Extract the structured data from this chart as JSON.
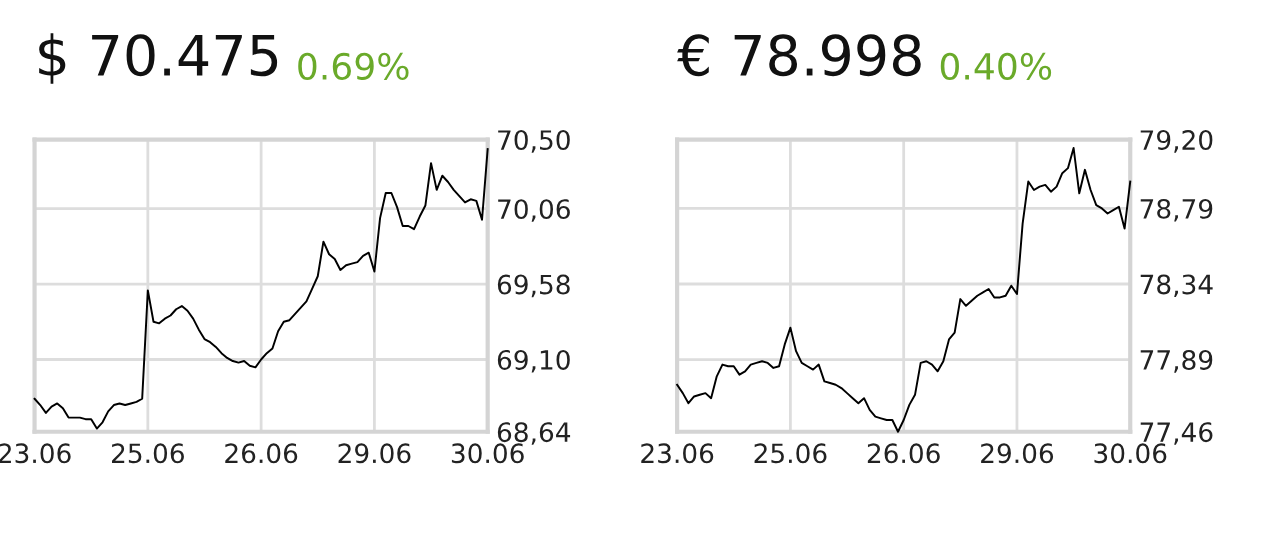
{
  "chart_data": [
    {
      "type": "line",
      "title": "$ 70.475",
      "subtitle": "0.69%",
      "categories": [
        "23.06",
        null,
        null,
        null,
        null,
        null,
        null,
        null,
        null,
        null,
        null,
        null,
        null,
        null,
        null,
        null,
        null,
        null,
        null,
        null,
        "25.06",
        null,
        null,
        null,
        null,
        null,
        null,
        null,
        null,
        null,
        null,
        null,
        null,
        null,
        null,
        null,
        null,
        null,
        null,
        null,
        "26.06",
        null,
        null,
        null,
        null,
        null,
        null,
        null,
        null,
        null,
        null,
        null,
        null,
        null,
        null,
        null,
        null,
        null,
        null,
        null,
        "29.06",
        null,
        null,
        null,
        null,
        null,
        null,
        null,
        null,
        null,
        null,
        null,
        null,
        null,
        null,
        null,
        null,
        null,
        null,
        null,
        "30.06"
      ],
      "ylim": [
        68.64,
        70.5
      ],
      "yticks": [
        {
          "value": 68.64,
          "label": "68,64"
        },
        {
          "value": 69.1,
          "label": "69,10"
        },
        {
          "value": 69.58,
          "label": "69,58"
        },
        {
          "value": 70.06,
          "label": "70,06"
        },
        {
          "value": 70.5,
          "label": "70,50"
        }
      ],
      "grid": true,
      "series": [
        {
          "color": "#000000",
          "values": [
            68.85,
            68.81,
            68.76,
            68.8,
            68.82,
            68.79,
            68.73,
            68.73,
            68.73,
            68.72,
            68.72,
            68.66,
            68.7,
            68.77,
            68.81,
            68.82,
            68.81,
            68.82,
            68.83,
            68.85,
            69.54,
            69.34,
            69.33,
            69.36,
            69.38,
            69.42,
            69.44,
            69.41,
            69.36,
            69.29,
            69.23,
            69.21,
            69.18,
            69.14,
            69.11,
            69.09,
            69.08,
            69.09,
            69.06,
            69.05,
            69.1,
            69.14,
            69.17,
            69.28,
            69.34,
            69.35,
            69.39,
            69.43,
            69.47,
            69.55,
            69.63,
            69.85,
            69.77,
            69.74,
            69.67,
            69.7,
            69.71,
            69.72,
            69.76,
            69.78,
            69.66,
            70.0,
            70.16,
            70.16,
            70.07,
            69.95,
            69.95,
            69.93,
            70.01,
            70.08,
            70.35,
            70.18,
            70.27,
            70.23,
            70.18,
            70.14,
            70.1,
            70.12,
            70.11,
            69.99,
            70.44
          ]
        }
      ]
    },
    {
      "type": "line",
      "title": "€ 78.998",
      "subtitle": "0.40%",
      "categories": [
        "23.06",
        null,
        null,
        null,
        null,
        null,
        null,
        null,
        null,
        null,
        null,
        null,
        null,
        null,
        null,
        null,
        null,
        null,
        null,
        null,
        "25.06",
        null,
        null,
        null,
        null,
        null,
        null,
        null,
        null,
        null,
        null,
        null,
        null,
        null,
        null,
        null,
        null,
        null,
        null,
        null,
        "26.06",
        null,
        null,
        null,
        null,
        null,
        null,
        null,
        null,
        null,
        null,
        null,
        null,
        null,
        null,
        null,
        null,
        null,
        null,
        null,
        "29.06",
        null,
        null,
        null,
        null,
        null,
        null,
        null,
        null,
        null,
        null,
        null,
        null,
        null,
        null,
        null,
        null,
        null,
        null,
        null,
        "30.06"
      ],
      "ylim": [
        77.46,
        79.2
      ],
      "yticks": [
        {
          "value": 77.46,
          "label": "77,46"
        },
        {
          "value": 77.89,
          "label": "77,89"
        },
        {
          "value": 78.34,
          "label": "78,34"
        },
        {
          "value": 78.79,
          "label": "78,79"
        },
        {
          "value": 79.2,
          "label": "79,20"
        }
      ],
      "grid": true,
      "series": [
        {
          "color": "#000000",
          "values": [
            77.74,
            77.69,
            77.63,
            77.67,
            77.68,
            77.69,
            77.66,
            77.79,
            77.86,
            77.85,
            77.85,
            77.8,
            77.82,
            77.86,
            77.87,
            77.88,
            77.87,
            77.84,
            77.85,
            77.98,
            78.08,
            77.94,
            77.87,
            77.85,
            77.83,
            77.86,
            77.76,
            77.75,
            77.74,
            77.72,
            77.69,
            77.66,
            77.63,
            77.66,
            77.59,
            77.55,
            77.54,
            77.53,
            77.53,
            77.46,
            77.53,
            77.62,
            77.68,
            77.87,
            77.88,
            77.86,
            77.82,
            77.88,
            78.01,
            78.05,
            78.25,
            78.21,
            78.24,
            78.27,
            78.29,
            78.31,
            78.26,
            78.26,
            78.27,
            78.33,
            78.28,
            78.7,
            78.95,
            78.9,
            78.92,
            78.93,
            78.89,
            78.92,
            79.0,
            79.03,
            79.15,
            78.88,
            79.02,
            78.9,
            78.81,
            78.79,
            78.76,
            78.78,
            78.8,
            78.67,
            78.95
          ]
        }
      ]
    }
  ]
}
